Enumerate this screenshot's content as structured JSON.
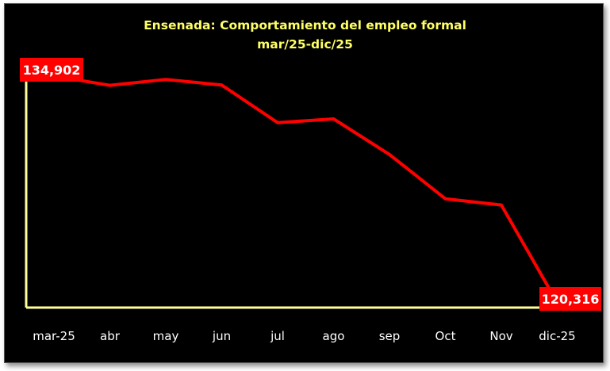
{
  "chart_data": {
    "type": "line",
    "title": "Ensenada: Comportamiento del empleo formal",
    "subtitle": "mar/25-dic/25",
    "categories": [
      "mar-25",
      "abr",
      "may",
      "jun",
      "jul",
      "ago",
      "sep",
      "Oct",
      "Nov",
      "dic-25"
    ],
    "series": [
      {
        "values": [
          134902,
          134300,
          134680,
          134320,
          131900,
          132140,
          129850,
          127000,
          126600,
          120316
        ]
      }
    ],
    "data_labels": [
      "134,902",
      "120,316"
    ],
    "ylim": [
      120000,
      135200
    ],
    "grid": false,
    "legend": "none",
    "colors": {
      "background": "#000000",
      "line": "#ff0000",
      "axes": "#ffff99",
      "title": "#ffff66",
      "label_fill": "#ff0000",
      "text": "#ffffff"
    }
  }
}
